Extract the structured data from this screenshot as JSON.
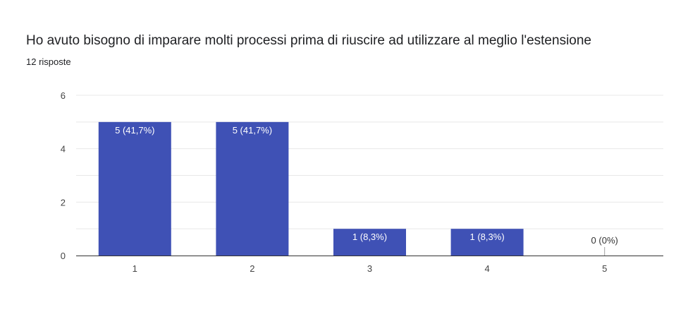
{
  "title": "Ho avuto bisogno di imparare molti processi prima di riuscire ad utilizzare al meglio l'estensione",
  "subtitle": "12 risposte",
  "colors": {
    "bar": "#3f51b5",
    "gridline": "#e8e8e8",
    "axis": "#333333",
    "label_inside": "#ffffff",
    "label_outside": "#333333"
  },
  "chart_data": {
    "type": "bar",
    "categories": [
      "1",
      "2",
      "3",
      "4",
      "5"
    ],
    "values": [
      5,
      5,
      1,
      1,
      0
    ],
    "data_labels": [
      "5 (41,7%)",
      "5 (41,7%)",
      "1 (8,3%)",
      "1 (8,3%)",
      "0 (0%)"
    ],
    "ylim": [
      0,
      6
    ],
    "yticks": [
      "0",
      "2",
      "4",
      "6"
    ],
    "grid": true,
    "legend": "none",
    "xlabel": "",
    "ylabel": ""
  }
}
